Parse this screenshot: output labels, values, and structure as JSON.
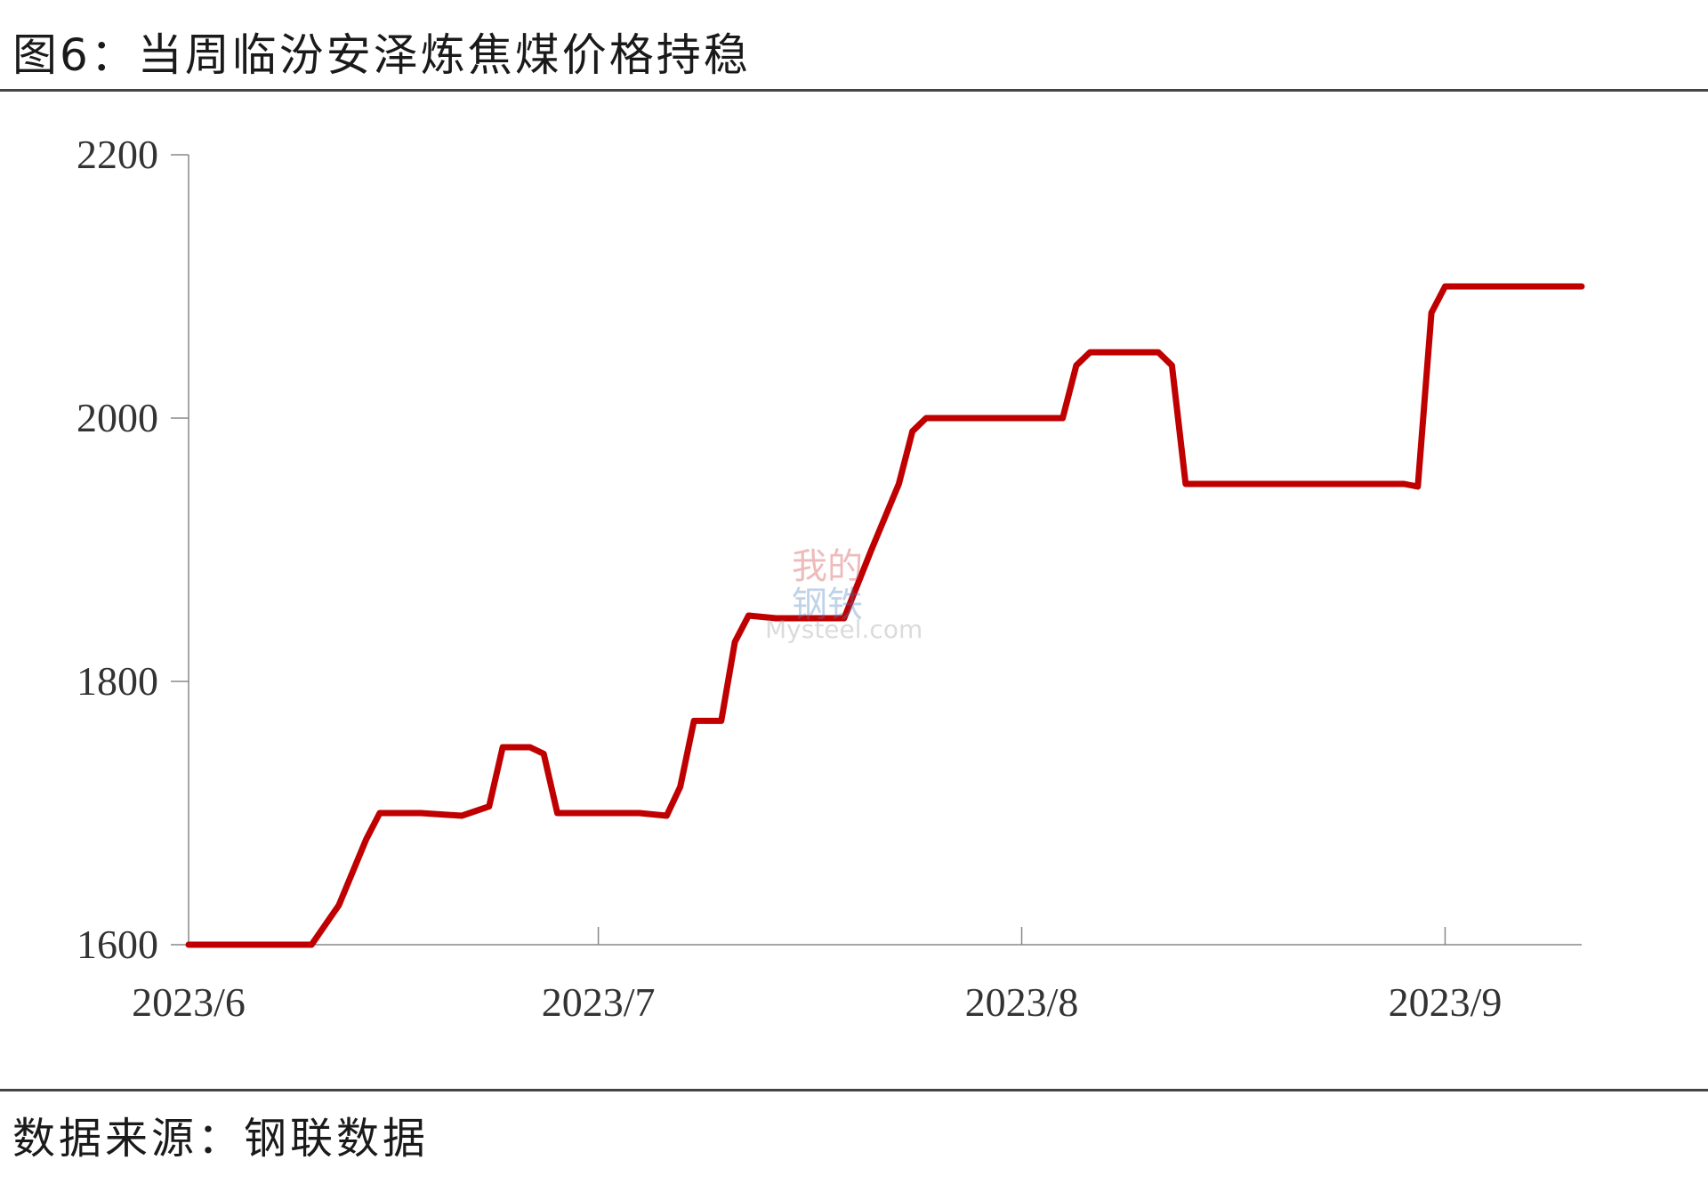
{
  "title": "图6：当周临汾安泽炼焦煤价格持稳",
  "source": "数据来源：钢联数据",
  "watermark": {
    "line1": "我的",
    "line2": "钢铁",
    "site": "Mysteel.com"
  },
  "colors": {
    "line": "#c00000",
    "axis": "#888888",
    "text": "#333333"
  },
  "chart_data": {
    "type": "line",
    "title": "",
    "xlabel": "",
    "ylabel": "",
    "ylim": [
      1600,
      2200
    ],
    "yticks": [
      1600,
      1800,
      2000,
      2200
    ],
    "xticks": [
      {
        "date": "2023-06-01",
        "label": "2023/6"
      },
      {
        "date": "2023-07-01",
        "label": "2023/7"
      },
      {
        "date": "2023-08-01",
        "label": "2023/8"
      },
      {
        "date": "2023-09-01",
        "label": "2023/9"
      }
    ],
    "xlim": [
      "2023-06-01",
      "2023-09-11"
    ],
    "grid": false,
    "series": [
      {
        "name": "",
        "points": [
          [
            "2023-06-01",
            1600
          ],
          [
            "2023-06-10",
            1600
          ],
          [
            "2023-06-12",
            1630
          ],
          [
            "2023-06-14",
            1680
          ],
          [
            "2023-06-15",
            1700
          ],
          [
            "2023-06-18",
            1700
          ],
          [
            "2023-06-21",
            1698
          ],
          [
            "2023-06-23",
            1705
          ],
          [
            "2023-06-24",
            1750
          ],
          [
            "2023-06-26",
            1750
          ],
          [
            "2023-06-27",
            1745
          ],
          [
            "2023-06-28",
            1700
          ],
          [
            "2023-06-30",
            1700
          ],
          [
            "2023-07-02",
            1700
          ],
          [
            "2023-07-04",
            1700
          ],
          [
            "2023-07-06",
            1698
          ],
          [
            "2023-07-07",
            1720
          ],
          [
            "2023-07-08",
            1770
          ],
          [
            "2023-07-10",
            1770
          ],
          [
            "2023-07-11",
            1830
          ],
          [
            "2023-07-12",
            1850
          ],
          [
            "2023-07-14",
            1848
          ],
          [
            "2023-07-17",
            1848
          ],
          [
            "2023-07-19",
            1848
          ],
          [
            "2023-07-21",
            1900
          ],
          [
            "2023-07-23",
            1950
          ],
          [
            "2023-07-24",
            1990
          ],
          [
            "2023-07-25",
            2000
          ],
          [
            "2023-07-28",
            2000
          ],
          [
            "2023-08-01",
            2000
          ],
          [
            "2023-08-03",
            2000
          ],
          [
            "2023-08-04",
            2000
          ],
          [
            "2023-08-05",
            2040
          ],
          [
            "2023-08-06",
            2050
          ],
          [
            "2023-08-09",
            2050
          ],
          [
            "2023-08-11",
            2050
          ],
          [
            "2023-08-12",
            2040
          ],
          [
            "2023-08-13",
            1950
          ],
          [
            "2023-08-16",
            1950
          ],
          [
            "2023-08-20",
            1950
          ],
          [
            "2023-08-25",
            1950
          ],
          [
            "2023-08-29",
            1950
          ],
          [
            "2023-08-30",
            1948
          ],
          [
            "2023-08-31",
            2080
          ],
          [
            "2023-09-01",
            2100
          ],
          [
            "2023-09-04",
            2100
          ],
          [
            "2023-09-08",
            2100
          ],
          [
            "2023-09-11",
            2100
          ]
        ]
      }
    ]
  }
}
